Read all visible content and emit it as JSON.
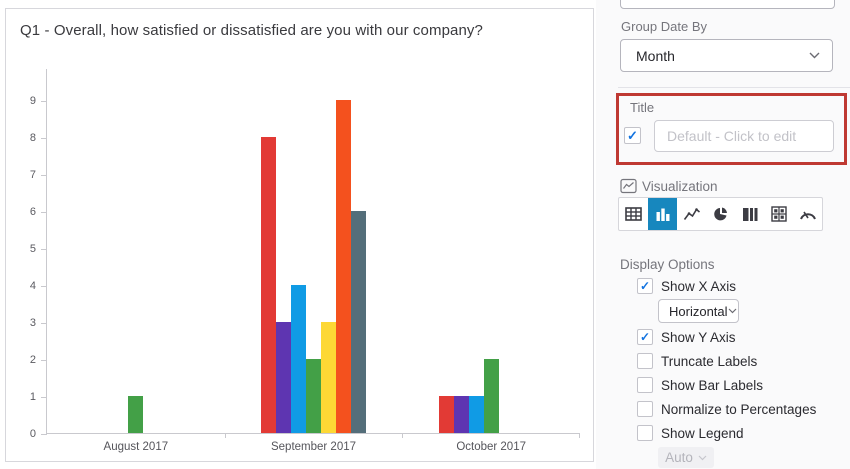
{
  "chart_panel": {
    "title": "Q1 - Overall, how satisfied or dissatisfied are you with our company?"
  },
  "chart_data": {
    "type": "bar",
    "title": "Q1 - Overall, how satisfied or dissatisfied are you with our company?",
    "categories": [
      "August 2017",
      "September 2017",
      "October 2017"
    ],
    "series": [
      {
        "name": "red",
        "color": "#e23a35",
        "values": [
          null,
          8,
          1
        ]
      },
      {
        "name": "purple",
        "color": "#5e35b1",
        "values": [
          null,
          3,
          1
        ]
      },
      {
        "name": "blue",
        "color": "#109be5",
        "values": [
          null,
          4,
          1
        ]
      },
      {
        "name": "green",
        "color": "#43a047",
        "values": [
          1,
          2,
          2
        ]
      },
      {
        "name": "yellow",
        "color": "#fdd835",
        "values": [
          null,
          3,
          null
        ]
      },
      {
        "name": "orange",
        "color": "#f4511e",
        "values": [
          null,
          9,
          null
        ]
      },
      {
        "name": "gray",
        "color": "#546e7a",
        "values": [
          null,
          6,
          null
        ]
      }
    ],
    "ylim": [
      0,
      9
    ],
    "yticks": [
      0,
      1,
      2,
      3,
      4,
      5,
      6,
      7,
      8,
      9
    ],
    "xlabel": "",
    "ylabel": "",
    "grid": false,
    "legend": false
  },
  "settings": {
    "group_date_by": {
      "label": "Group Date By",
      "value": "Month"
    },
    "title_section": {
      "label": "Title",
      "checkbox_checked": true,
      "input_value": "",
      "input_placeholder": "Default - Click to edit"
    },
    "visualization": {
      "label": "Visualization",
      "selected": "bar-chart",
      "options": [
        "table",
        "bar-chart",
        "line-chart",
        "pie-chart",
        "side-by-side-bars",
        "matrix-table",
        "gauge"
      ]
    },
    "display_options": {
      "label": "Display Options",
      "show_x_axis": {
        "label": "Show X Axis",
        "checked": true
      },
      "x_axis_orientation": {
        "value": "Horizontal"
      },
      "show_y_axis": {
        "label": "Show Y Axis",
        "checked": true
      },
      "truncate_labels": {
        "label": "Truncate Labels",
        "checked": false
      },
      "show_bar_labels": {
        "label": "Show Bar Labels",
        "checked": false
      },
      "normalize": {
        "label": "Normalize to Percentages",
        "checked": false
      },
      "show_legend": {
        "label": "Show Legend",
        "checked": false
      },
      "legend_position": {
        "value": "Auto"
      }
    }
  },
  "colors": {
    "accent_blue": "#1787be",
    "check_blue": "#1273e0",
    "highlight_red": "#bf3933"
  }
}
